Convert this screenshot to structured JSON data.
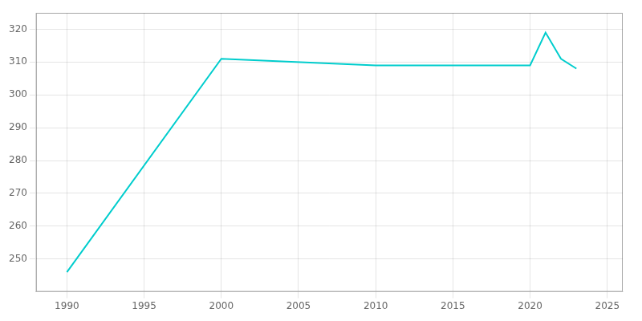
{
  "chart_data": {
    "type": "line",
    "x": [
      1990,
      2000,
      2010,
      2020,
      2021,
      2022,
      2023
    ],
    "values": [
      246,
      311,
      309,
      309,
      319,
      311,
      308
    ],
    "color": "#00CDCD",
    "xlim": [
      1988,
      2026
    ],
    "ylim": [
      240,
      325
    ],
    "xticks": [
      1990,
      1995,
      2000,
      2005,
      2010,
      2015,
      2020,
      2025
    ],
    "yticks": [
      250,
      260,
      270,
      280,
      290,
      300,
      310,
      320
    ],
    "grid": true
  }
}
